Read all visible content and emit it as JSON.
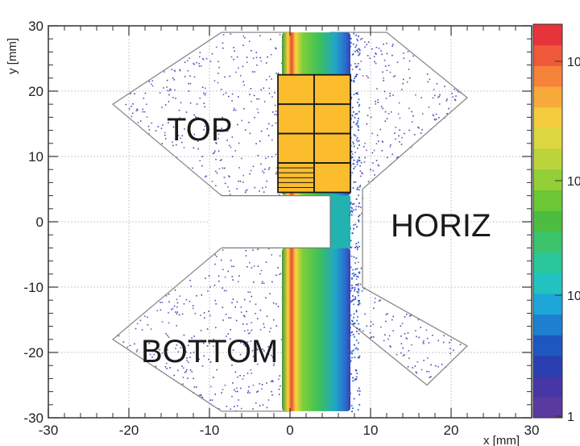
{
  "chart_data": {
    "type": "heatmap",
    "title": "",
    "xlabel": "x [mm]",
    "ylabel": "y [mm]",
    "xlim": [
      -30,
      30
    ],
    "ylim": [
      -30,
      30
    ],
    "x_ticks": [
      "-30",
      "-20",
      "-10",
      "0",
      "10",
      "20",
      "30"
    ],
    "y_ticks": [
      "30",
      "20",
      "10",
      "0",
      "-10",
      "-20",
      "-30"
    ],
    "grid": true,
    "colorbar": {
      "scale": "log",
      "labels": [
        "10",
        "10",
        "10",
        "1"
      ],
      "colors": [
        "#5a3a9e",
        "#4636a6",
        "#2a3fb0",
        "#1f57c0",
        "#1f7fd0",
        "#1fa6d8",
        "#22c2c0",
        "#2ac79a",
        "#3cc46c",
        "#4cbd40",
        "#6cc636",
        "#94cf38",
        "#bcd43c",
        "#dcd640",
        "#f2cc3c",
        "#f7a93a",
        "#f5833a",
        "#ef5a3a",
        "#e6343a"
      ]
    },
    "regions": [
      {
        "label": "TOP",
        "polygon": [
          [
            -8.5,
            29
          ],
          [
            0,
            29
          ],
          [
            0,
            4
          ],
          [
            -8.5,
            4
          ],
          [
            -22,
            18
          ]
        ]
      },
      {
        "label": "BOTTOM",
        "polygon": [
          [
            -8.5,
            -4
          ],
          [
            0,
            -4
          ],
          [
            0,
            -29
          ],
          [
            -8.5,
            -29
          ],
          [
            -22,
            -18
          ]
        ]
      },
      {
        "label": "HORIZ",
        "polygon": [
          [
            12,
            29
          ],
          [
            22,
            19
          ],
          [
            9,
            5
          ],
          [
            9,
            -10
          ],
          [
            22,
            -19
          ],
          [
            17,
            -25
          ],
          [
            5,
            -13
          ],
          [
            5,
            6
          ],
          [
            5,
            29
          ]
        ]
      }
    ],
    "beam_band": {
      "upper": {
        "x_range": [
          -1,
          7.5
        ],
        "y_range": [
          4,
          29
        ]
      },
      "lower": {
        "x_range": [
          -1,
          7.5
        ],
        "y_range": [
          -29,
          -4
        ]
      },
      "hole": {
        "x_range": [
          -10,
          5
        ],
        "y_range": [
          -4,
          4
        ]
      }
    },
    "overlay_grid": {
      "x_range": [
        -1.5,
        7.5
      ],
      "y_range": [
        4.5,
        22.5
      ],
      "columns": 2,
      "rows": 4,
      "fill": "#fbbd2e",
      "hatched_cell": "bottom-left"
    }
  }
}
